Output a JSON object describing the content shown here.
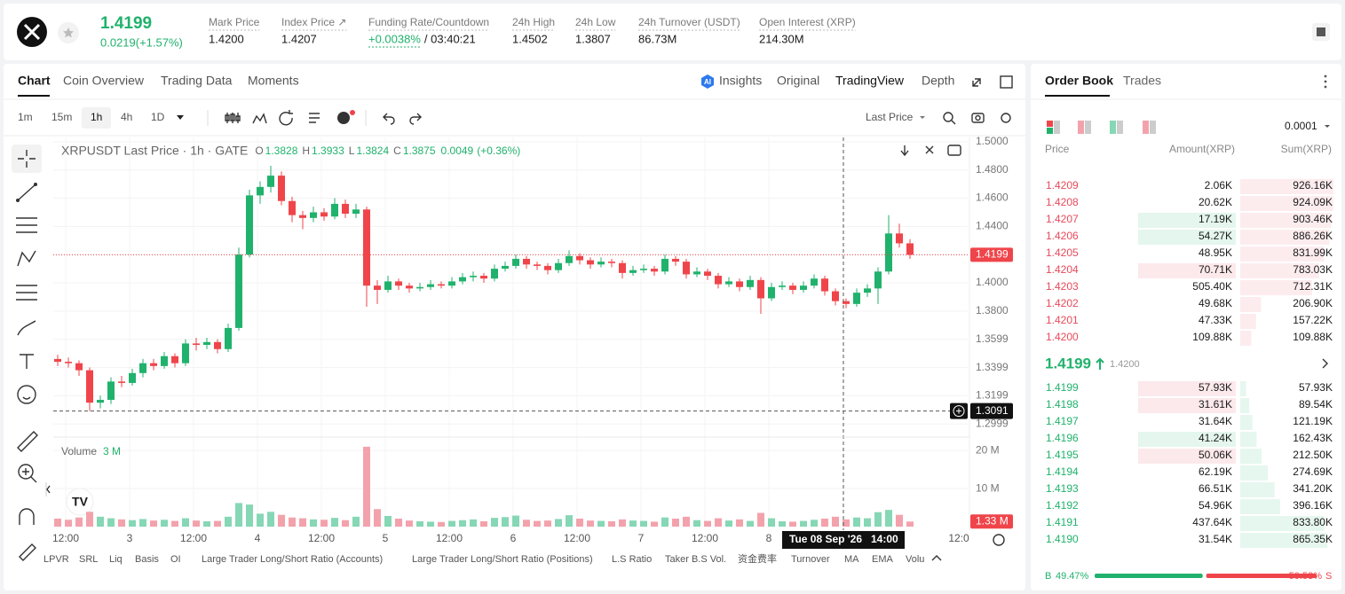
{
  "header": {
    "price": "1.4199",
    "change": "0.0219(+1.57%)",
    "stats": [
      {
        "label": "Mark Price",
        "value": "1.4200"
      },
      {
        "label": "Index Price ↗",
        "value": "1.4207"
      },
      {
        "label": "Funding Rate/Countdown",
        "value": "+0.0038%",
        "extra": "/ 03:40:21"
      },
      {
        "label": "24h High",
        "value": "1.4502"
      },
      {
        "label": "24h Low",
        "value": "1.3807"
      },
      {
        "label": "24h Turnover (USDT)",
        "value": "86.73M"
      },
      {
        "label": "Open Interest (XRP)",
        "value": "214.30M"
      }
    ]
  },
  "tabs": [
    "Chart",
    "Coin Overview",
    "Trading Data",
    "Moments"
  ],
  "view_tabs": [
    "Insights",
    "Original",
    "TradingView",
    "Depth"
  ],
  "intervals": [
    "1m",
    "15m",
    "1h",
    "4h",
    "1D"
  ],
  "price_source": "Last Price",
  "indicators": [
    "LPVR",
    "SRL",
    "Liq",
    "Basis",
    "OI",
    "Large Trader Long/Short Ratio (Accounts)",
    "Large Trader Long/Short Ratio (Positions)",
    "L.S Ratio",
    "Taker B.S Vol.",
    "资金费率",
    "Turnover",
    "MA",
    "EMA",
    "Volu"
  ],
  "chart_data": {
    "type": "candlestick",
    "legend": {
      "symbol": "XRPUSDT Last Price · 1h · GATE",
      "o_label": "O",
      "o": 1.3828,
      "h_label": "H",
      "h": 1.3933,
      "l_label": "L",
      "l": 1.3824,
      "c_label": "C",
      "c": 1.3875,
      "change": 0.0049,
      "change_pct": "(+0.36%)"
    },
    "up_color": "#20b26c",
    "down_color": "#ef454a",
    "volume_up_color": "#86d7b5",
    "volume_down_color": "#f3a2ac",
    "candles": [
      [
        1.346,
        1.349,
        1.341,
        1.344
      ],
      [
        1.344,
        1.347,
        1.34,
        1.343
      ],
      [
        1.343,
        1.345,
        1.334,
        1.338
      ],
      [
        1.338,
        1.34,
        1.309,
        1.315
      ],
      [
        1.315,
        1.32,
        1.311,
        1.317
      ],
      [
        1.317,
        1.333,
        1.314,
        1.33
      ],
      [
        1.33,
        1.334,
        1.326,
        1.329
      ],
      [
        1.329,
        1.339,
        1.327,
        1.336
      ],
      [
        1.336,
        1.346,
        1.333,
        1.343
      ],
      [
        1.343,
        1.346,
        1.338,
        1.341
      ],
      [
        1.341,
        1.351,
        1.339,
        1.348
      ],
      [
        1.348,
        1.35,
        1.34,
        1.343
      ],
      [
        1.343,
        1.36,
        1.341,
        1.357
      ],
      [
        1.357,
        1.361,
        1.352,
        1.356
      ],
      [
        1.356,
        1.361,
        1.353,
        1.358
      ],
      [
        1.358,
        1.36,
        1.35,
        1.353
      ],
      [
        1.353,
        1.371,
        1.351,
        1.368
      ],
      [
        1.368,
        1.425,
        1.366,
        1.42
      ],
      [
        1.42,
        1.466,
        1.418,
        1.462
      ],
      [
        1.462,
        1.472,
        1.456,
        1.468
      ],
      [
        1.468,
        1.483,
        1.464,
        1.476
      ],
      [
        1.476,
        1.479,
        1.455,
        1.458
      ],
      [
        1.458,
        1.461,
        1.443,
        1.448
      ],
      [
        1.448,
        1.451,
        1.438,
        1.446
      ],
      [
        1.446,
        1.454,
        1.443,
        1.45
      ],
      [
        1.45,
        1.453,
        1.444,
        1.447
      ],
      [
        1.447,
        1.46,
        1.445,
        1.456
      ],
      [
        1.456,
        1.459,
        1.446,
        1.449
      ],
      [
        1.449,
        1.456,
        1.446,
        1.452
      ],
      [
        1.452,
        1.454,
        1.383,
        1.398
      ],
      [
        1.398,
        1.402,
        1.385,
        1.395
      ],
      [
        1.395,
        1.405,
        1.393,
        1.401
      ],
      [
        1.401,
        1.403,
        1.395,
        1.398
      ],
      [
        1.398,
        1.4,
        1.393,
        1.396
      ],
      [
        1.396,
        1.4,
        1.394,
        1.397
      ],
      [
        1.397,
        1.402,
        1.395,
        1.399
      ],
      [
        1.399,
        1.401,
        1.396,
        1.398
      ],
      [
        1.398,
        1.404,
        1.396,
        1.401
      ],
      [
        1.401,
        1.407,
        1.399,
        1.404
      ],
      [
        1.404,
        1.408,
        1.401,
        1.405
      ],
      [
        1.405,
        1.407,
        1.4,
        1.403
      ],
      [
        1.403,
        1.413,
        1.401,
        1.41
      ],
      [
        1.41,
        1.415,
        1.408,
        1.412
      ],
      [
        1.412,
        1.42,
        1.41,
        1.417
      ],
      [
        1.417,
        1.419,
        1.41,
        1.413
      ],
      [
        1.413,
        1.415,
        1.409,
        1.412
      ],
      [
        1.412,
        1.414,
        1.406,
        1.409
      ],
      [
        1.409,
        1.417,
        1.407,
        1.414
      ],
      [
        1.414,
        1.423,
        1.412,
        1.419
      ],
      [
        1.419,
        1.421,
        1.413,
        1.416
      ],
      [
        1.416,
        1.418,
        1.41,
        1.413
      ],
      [
        1.413,
        1.418,
        1.411,
        1.415
      ],
      [
        1.415,
        1.417,
        1.411,
        1.414
      ],
      [
        1.414,
        1.416,
        1.403,
        1.407
      ],
      [
        1.407,
        1.412,
        1.405,
        1.409
      ],
      [
        1.409,
        1.413,
        1.407,
        1.41
      ],
      [
        1.41,
        1.412,
        1.405,
        1.408
      ],
      [
        1.408,
        1.42,
        1.406,
        1.417
      ],
      [
        1.417,
        1.419,
        1.412,
        1.415
      ],
      [
        1.415,
        1.417,
        1.403,
        1.406
      ],
      [
        1.406,
        1.411,
        1.404,
        1.408
      ],
      [
        1.408,
        1.41,
        1.402,
        1.405
      ],
      [
        1.405,
        1.407,
        1.396,
        1.399
      ],
      [
        1.399,
        1.404,
        1.397,
        1.401
      ],
      [
        1.401,
        1.403,
        1.394,
        1.397
      ],
      [
        1.397,
        1.405,
        1.395,
        1.402
      ],
      [
        1.402,
        1.404,
        1.378,
        1.389
      ],
      [
        1.389,
        1.4,
        1.387,
        1.397
      ],
      [
        1.397,
        1.401,
        1.395,
        1.398
      ],
      [
        1.398,
        1.4,
        1.392,
        1.395
      ],
      [
        1.395,
        1.401,
        1.393,
        1.398
      ],
      [
        1.398,
        1.406,
        1.396,
        1.403
      ],
      [
        1.403,
        1.405,
        1.391,
        1.394
      ],
      [
        1.394,
        1.396,
        1.384,
        1.387
      ],
      [
        1.387,
        1.389,
        1.382,
        1.385
      ],
      [
        1.385,
        1.396,
        1.383,
        1.393
      ],
      [
        1.393,
        1.399,
        1.39,
        1.396
      ],
      [
        1.396,
        1.411,
        1.385,
        1.408
      ],
      [
        1.408,
        1.448,
        1.406,
        1.435
      ],
      [
        1.435,
        1.442,
        1.425,
        1.428
      ],
      [
        1.428,
        1.431,
        1.417,
        1.4199
      ]
    ],
    "volume_title": "Volume",
    "volume_avg": "3 M",
    "volumes": [
      2.1,
      1.8,
      2.4,
      3.9,
      2.6,
      2.2,
      1.9,
      1.7,
      2.0,
      1.6,
      1.8,
      1.5,
      2.2,
      1.6,
      1.4,
      1.5,
      2.6,
      6.2,
      5.8,
      3.4,
      3.9,
      3.1,
      2.4,
      2.2,
      1.9,
      1.8,
      2.3,
      1.7,
      2.6,
      21.0,
      4.6,
      2.8,
      2.1,
      1.6,
      1.4,
      1.3,
      1.2,
      1.5,
      1.7,
      1.9,
      1.4,
      2.3,
      2.5,
      2.9,
      1.8,
      1.5,
      1.6,
      2.0,
      3.0,
      2.1,
      1.6,
      1.5,
      1.4,
      1.9,
      1.6,
      1.5,
      1.3,
      2.4,
      2.1,
      2.6,
      1.7,
      1.5,
      2.2,
      1.6,
      1.9,
      1.5,
      3.6,
      2.2,
      1.4,
      1.3,
      1.5,
      1.8,
      2.1,
      2.6,
      1.9,
      2.4,
      2.2,
      3.8,
      4.4,
      3.1,
      1.33
    ],
    "last_volume_label": "1.33 M",
    "ylim": [
      1.2925,
      1.5031
    ],
    "yticks": [
      {
        "value": 1.5,
        "label": "1.5000"
      },
      {
        "value": 1.48,
        "label": "1.4800"
      },
      {
        "value": 1.46,
        "label": "1.4600"
      },
      {
        "value": 1.44,
        "label": "1.4400"
      },
      {
        "value": 1.42,
        "label": "1.4200"
      },
      {
        "value": 1.4,
        "label": "1.4000"
      },
      {
        "value": 1.38,
        "label": "1.3800"
      },
      1.3599,
      1.3399,
      1.3199,
      1.2999
    ],
    "volume_ylim": [
      0,
      23.3
    ],
    "volume_yticks": [
      {
        "value": 20,
        "label": "20 M"
      },
      {
        "value": 10,
        "label": "10 M"
      }
    ],
    "xticks": [
      "12:00",
      "3",
      "12:00",
      "4",
      "12:00",
      "5",
      "12:00",
      "6",
      "12:00",
      "7",
      "12:00",
      "8"
    ],
    "xtick_clipped": "12:0",
    "crosshair": {
      "price": 1.3091,
      "date": "Tue 08 Sep '26",
      "time": "14:00"
    },
    "grid": true
  },
  "order_book": {
    "tabs": [
      "Order Book",
      "Trades"
    ],
    "precision": "0.0001",
    "columns": [
      "Price",
      "Amount(XRP)",
      "Sum(XRP)"
    ],
    "asks": [
      {
        "price": "1.4209",
        "amount": "2.06K",
        "sum": "926.16K"
      },
      {
        "price": "1.4208",
        "amount": "20.62K",
        "sum": "924.09K"
      },
      {
        "price": "1.4207",
        "amount": "17.19K",
        "sum": "903.46K",
        "highlight": "buy"
      },
      {
        "price": "1.4206",
        "amount": "54.27K",
        "sum": "886.26K",
        "highlight": "buy"
      },
      {
        "price": "1.4205",
        "amount": "48.95K",
        "sum": "831.99K"
      },
      {
        "price": "1.4204",
        "amount": "70.71K",
        "sum": "783.03K",
        "highlight": "sell"
      },
      {
        "price": "1.4203",
        "amount": "505.40K",
        "sum": "712.31K"
      },
      {
        "price": "1.4202",
        "amount": "49.68K",
        "sum": "206.90K"
      },
      {
        "price": "1.4201",
        "amount": "47.33K",
        "sum": "157.22K"
      },
      {
        "price": "1.4200",
        "amount": "109.88K",
        "sum": "109.88K"
      }
    ],
    "mid_price": "1.4199",
    "mark_price": "1.4200",
    "bids": [
      {
        "price": "1.4199",
        "amount": "57.93K",
        "sum": "57.93K",
        "highlight": "sell"
      },
      {
        "price": "1.4198",
        "amount": "31.61K",
        "sum": "89.54K",
        "highlight": "sell"
      },
      {
        "price": "1.4197",
        "amount": "31.64K",
        "sum": "121.19K"
      },
      {
        "price": "1.4196",
        "amount": "41.24K",
        "sum": "162.43K",
        "highlight": "buy"
      },
      {
        "price": "1.4195",
        "amount": "50.06K",
        "sum": "212.50K",
        "highlight": "sell"
      },
      {
        "price": "1.4194",
        "amount": "62.19K",
        "sum": "274.69K"
      },
      {
        "price": "1.4193",
        "amount": "66.51K",
        "sum": "341.20K"
      },
      {
        "price": "1.4192",
        "amount": "54.96K",
        "sum": "396.16K"
      },
      {
        "price": "1.4191",
        "amount": "437.64K",
        "sum": "833.80K"
      },
      {
        "price": "1.4190",
        "amount": "31.54K",
        "sum": "865.35K"
      }
    ],
    "buy_letter": "B",
    "buy_ratio": {
      "value": 49.47,
      "label": "49.47%"
    },
    "sell_ratio": {
      "value": 50.53,
      "label": "50.53%"
    },
    "sell_letter": "S"
  }
}
